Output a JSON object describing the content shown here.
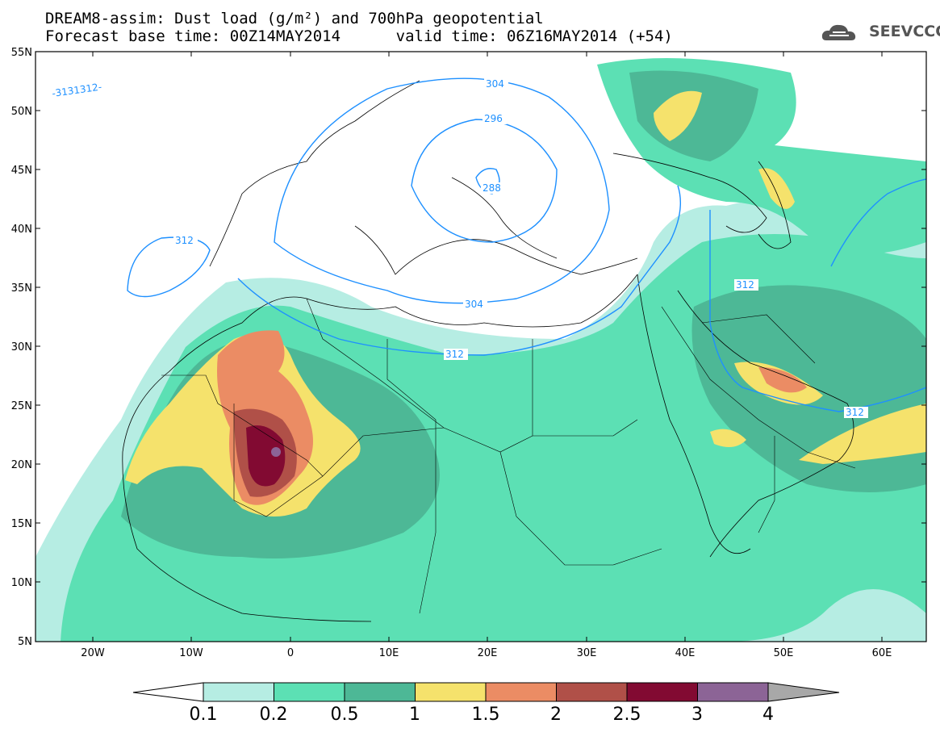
{
  "title": {
    "line1": "DREAM8-assim: Dust load (g/m²) and 700hPa geopotential",
    "line2": "Forecast base time: 00Z14MAY2014      valid time: 06Z16MAY2014 (+54)"
  },
  "logo": {
    "text": "SEEVCCC",
    "icon": "cloud-icon"
  },
  "axes": {
    "lat_labels": [
      "55N",
      "50N",
      "45N",
      "40N",
      "35N",
      "30N",
      "25N",
      "20N",
      "15N",
      "10N",
      "5N"
    ],
    "lon_labels": [
      "20W",
      "10W",
      "0",
      "10E",
      "20E",
      "30E",
      "40E",
      "50E",
      "60E"
    ]
  },
  "contours": {
    "labels": [
      "304",
      "296",
      "288",
      "312",
      "304",
      "312",
      "312",
      "312",
      "-3131312-"
    ]
  },
  "colorbar": {
    "labels": [
      "0.1",
      "0.2",
      "0.5",
      "1",
      "1.5",
      "2",
      "2.5",
      "3",
      "4"
    ],
    "colors": [
      "#b6ede3",
      "#5ce0b4",
      "#4db896",
      "#f5e26c",
      "#eb8c64",
      "#b05048",
      "#820a32",
      "#8c6496",
      "#a8a8a8"
    ]
  }
}
